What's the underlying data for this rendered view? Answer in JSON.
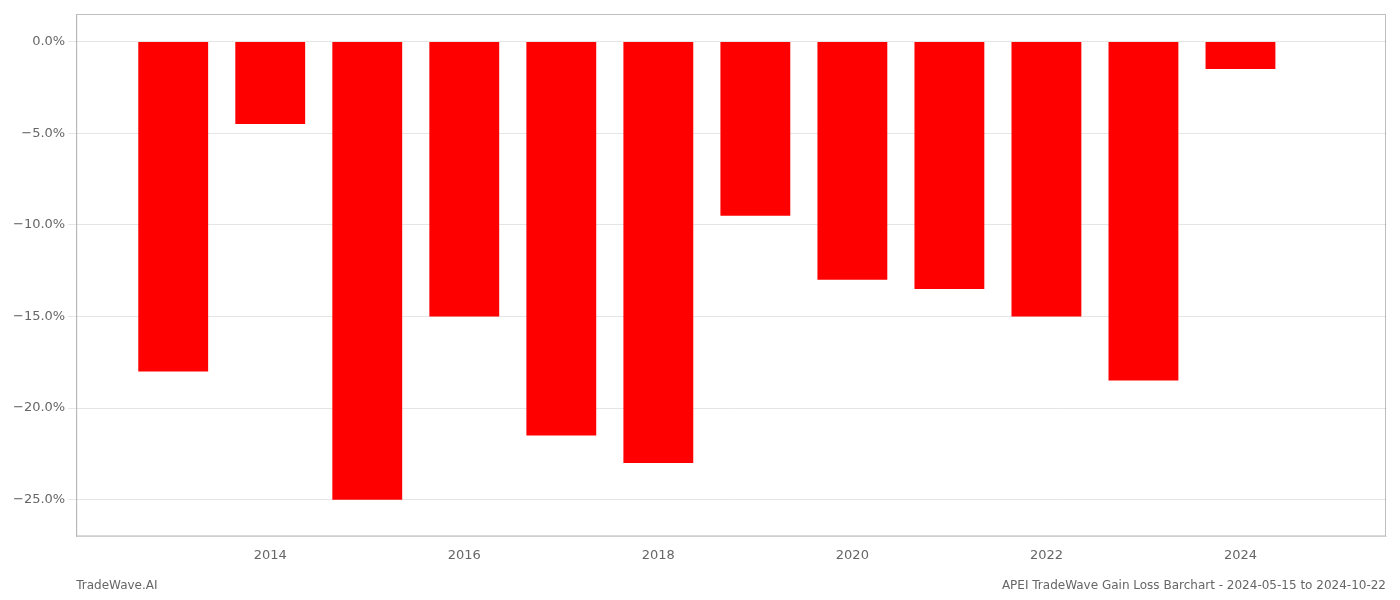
{
  "chart_data": {
    "type": "bar",
    "x": [
      2013,
      2014,
      2015,
      2016,
      2017,
      2018,
      2019,
      2020,
      2021,
      2022,
      2023,
      2024
    ],
    "values": [
      -18.0,
      -4.5,
      -25.0,
      -15.0,
      -21.5,
      -23.0,
      -9.5,
      -13.0,
      -13.5,
      -15.0,
      -18.5,
      -1.5
    ],
    "color": "#ff0000",
    "xlim": [
      2012.0,
      2025.5
    ],
    "xticks": [
      2014,
      2016,
      2018,
      2020,
      2022,
      2024
    ],
    "ylim": [
      -27,
      1.5
    ],
    "yticks": [
      {
        "value": 0.0,
        "label": "0.0%"
      },
      {
        "value": -5.0,
        "label": "−5.0%"
      },
      {
        "value": -10.0,
        "label": "−10.0%"
      },
      {
        "value": -15.0,
        "label": "−15.0%"
      },
      {
        "value": -20.0,
        "label": "−20.0%"
      },
      {
        "value": -25.0,
        "label": "−25.0%"
      }
    ],
    "grid": "y",
    "annotations": [
      "TradeWave.AI",
      "APEI TradeWave Gain Loss Barchart - 2024-05-15 to 2024-10-22"
    ]
  }
}
